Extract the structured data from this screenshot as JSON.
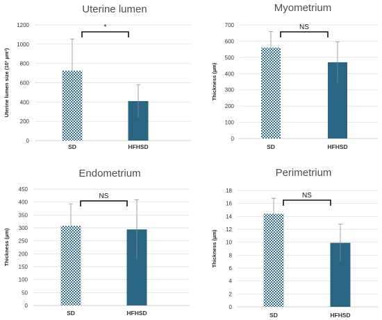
{
  "colors": {
    "sd_pattern": "#2d6e8f",
    "hfhsd_fill": "#2a6583"
  },
  "chart_data": [
    {
      "type": "bar",
      "title": "Uterine lumen",
      "ylabel": "Uterine lumen size (10³ µm²)",
      "xlabel": "",
      "categories": [
        "SD",
        "HFHSD"
      ],
      "values": [
        725,
        410
      ],
      "errors": [
        330,
        170
      ],
      "ylim": [
        0,
        1200
      ],
      "yticks": [
        "0",
        "200",
        "400",
        "600",
        "800",
        "1000",
        "1200"
      ],
      "significance": "*",
      "grid": true
    },
    {
      "type": "bar",
      "title": "Myometrium",
      "ylabel": "Thickness (µm)",
      "xlabel": "",
      "categories": [
        "SD",
        "HFHSD"
      ],
      "values": [
        560,
        470
      ],
      "errors": [
        100,
        125
      ],
      "ylim": [
        0,
        700
      ],
      "yticks": [
        "0",
        "100",
        "200",
        "300",
        "400",
        "500",
        "600",
        "700"
      ],
      "significance": "NS",
      "grid": true
    },
    {
      "type": "bar",
      "title": "Endometrium",
      "ylabel": "Thickness (µm)",
      "xlabel": "",
      "categories": [
        "SD",
        "HFHSD"
      ],
      "values": [
        308,
        294
      ],
      "errors": [
        85,
        115
      ],
      "ylim": [
        0,
        450
      ],
      "yticks": [
        "0",
        "50",
        "100",
        "150",
        "200",
        "250",
        "300",
        "350",
        "400",
        "450"
      ],
      "significance": "NS",
      "grid": true
    },
    {
      "type": "bar",
      "title": "Perimetrium",
      "ylabel": "Thickness (µm)",
      "xlabel": "",
      "categories": [
        "SD",
        "HFHSD"
      ],
      "values": [
        14.4,
        9.9
      ],
      "errors": [
        2.4,
        2.9
      ],
      "ylim": [
        0,
        18
      ],
      "yticks": [
        "0",
        "2",
        "4",
        "6",
        "8",
        "10",
        "12",
        "14",
        "16",
        "18"
      ],
      "significance": "NS",
      "grid": true
    }
  ]
}
